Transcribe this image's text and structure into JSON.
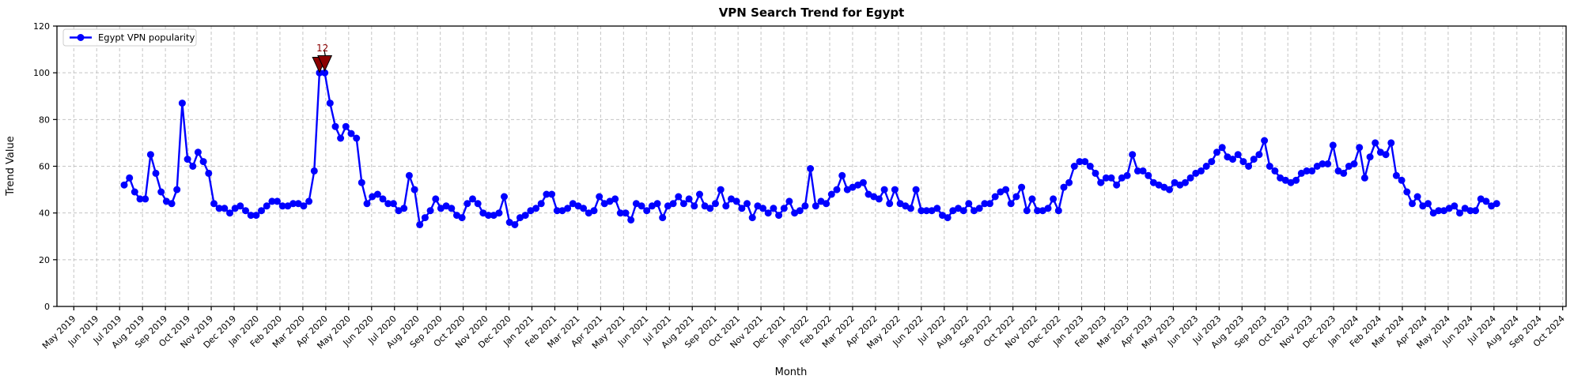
{
  "page": {
    "title": "VPN Search Trend for Egypt"
  },
  "chart_data": {
    "type": "line",
    "title": "VPN Search Trend for Egypt",
    "xlabel": "Month",
    "ylabel": "Trend Value",
    "ylim": [
      0,
      120
    ],
    "grid": true,
    "legend": {
      "position": "upper-left",
      "entries": [
        "Egypt VPN popularity"
      ]
    },
    "line_color": "#0000ff",
    "marker": "circle",
    "grid_color": "#c4c4c4",
    "annotation": {
      "text": "12",
      "color": "#8b0000",
      "marker": "double-triangle-down",
      "x_date": "2020-03-22",
      "y": 100
    },
    "y_tick_labels": [
      "0",
      "20",
      "40",
      "60",
      "80",
      "100",
      "120"
    ],
    "x_tick_labels": [
      "May 2019",
      "Jun 2019",
      "Jul 2019",
      "Aug 2019",
      "Sep 2019",
      "Oct 2019",
      "Nov 2019",
      "Dec 2019",
      "Jan 2020",
      "Feb 2020",
      "Mar 2020",
      "Apr 2020",
      "May 2020",
      "Jun 2020",
      "Jul 2020",
      "Aug 2020",
      "Sep 2020",
      "Oct 2020",
      "Nov 2020",
      "Dec 2020",
      "Jan 2021",
      "Feb 2021",
      "Mar 2021",
      "Apr 2021",
      "May 2021",
      "Jun 2021",
      "Jul 2021",
      "Aug 2021",
      "Sep 2021",
      "Oct 2021",
      "Nov 2021",
      "Dec 2021",
      "Jan 2022",
      "Feb 2022",
      "Mar 2022",
      "Apr 2022",
      "May 2022",
      "Jun 2022",
      "Jul 2022",
      "Aug 2022",
      "Sep 2022",
      "Oct 2022",
      "Nov 2022",
      "Dec 2022",
      "Jan 2023",
      "Feb 2023",
      "Mar 2023",
      "Apr 2023",
      "May 2023",
      "Jun 2023",
      "Jul 2023",
      "Aug 2023",
      "Sep 2023",
      "Oct 2023",
      "Nov 2023",
      "Dec 2023",
      "Jan 2024",
      "Feb 2024",
      "Mar 2024",
      "Apr 2024",
      "May 2024",
      "Jun 2024",
      "Jul 2024",
      "Aug 2024",
      "Sep 2024",
      "Oct 2024"
    ],
    "series": [
      {
        "name": "Egypt VPN popularity",
        "start_date": "2019-07-07",
        "interval": "weekly",
        "values": [
          52,
          55,
          49,
          46,
          46,
          65,
          57,
          49,
          45,
          44,
          50,
          87,
          63,
          60,
          66,
          62,
          57,
          44,
          42,
          42,
          40,
          42,
          43,
          41,
          39,
          39,
          41,
          43,
          45,
          45,
          43,
          43,
          44,
          44,
          43,
          45,
          58,
          100,
          100,
          87,
          77,
          72,
          77,
          74,
          72,
          53,
          44,
          47,
          48,
          46,
          44,
          44,
          41,
          42,
          56,
          50,
          35,
          38,
          41,
          46,
          42,
          43,
          42,
          39,
          38,
          44,
          46,
          44,
          40,
          39,
          39,
          40,
          47,
          36,
          35,
          38,
          39,
          41,
          42,
          44,
          48,
          48,
          41,
          41,
          42,
          44,
          43,
          42,
          40,
          41,
          47,
          44,
          45,
          46,
          40,
          40,
          37,
          44,
          43,
          41,
          43,
          44,
          38,
          43,
          44,
          47,
          44,
          46,
          43,
          48,
          43,
          42,
          44,
          50,
          43,
          46,
          45,
          42,
          44,
          38,
          43,
          42,
          40,
          42,
          39,
          42,
          45,
          40,
          41,
          43,
          59,
          43,
          45,
          44,
          48,
          50,
          56,
          50,
          51,
          52,
          53,
          48,
          47,
          46,
          50,
          44,
          50,
          44,
          43,
          42,
          50,
          41,
          41,
          41,
          42,
          39,
          38,
          41,
          42,
          41,
          44,
          41,
          42,
          44,
          44,
          47,
          49,
          50,
          44,
          47,
          51,
          41,
          46,
          41,
          41,
          42,
          46,
          41,
          51,
          53,
          60,
          62,
          62,
          60,
          57,
          53,
          55,
          55,
          52,
          55,
          56,
          65,
          58,
          58,
          56,
          53,
          52,
          51,
          50,
          53,
          52,
          53,
          55,
          57,
          58,
          60,
          62,
          66,
          68,
          64,
          63,
          65,
          62,
          60,
          63,
          65,
          71,
          60,
          58,
          55,
          54,
          53,
          54,
          57,
          58,
          58,
          60,
          61,
          61,
          69,
          58,
          57,
          60,
          61,
          68,
          55,
          64,
          70,
          66,
          65,
          70,
          56,
          54,
          49,
          44,
          47,
          43,
          44,
          40,
          41,
          41,
          42,
          43,
          40,
          42,
          41,
          41,
          46,
          45,
          43,
          44
        ]
      }
    ]
  }
}
